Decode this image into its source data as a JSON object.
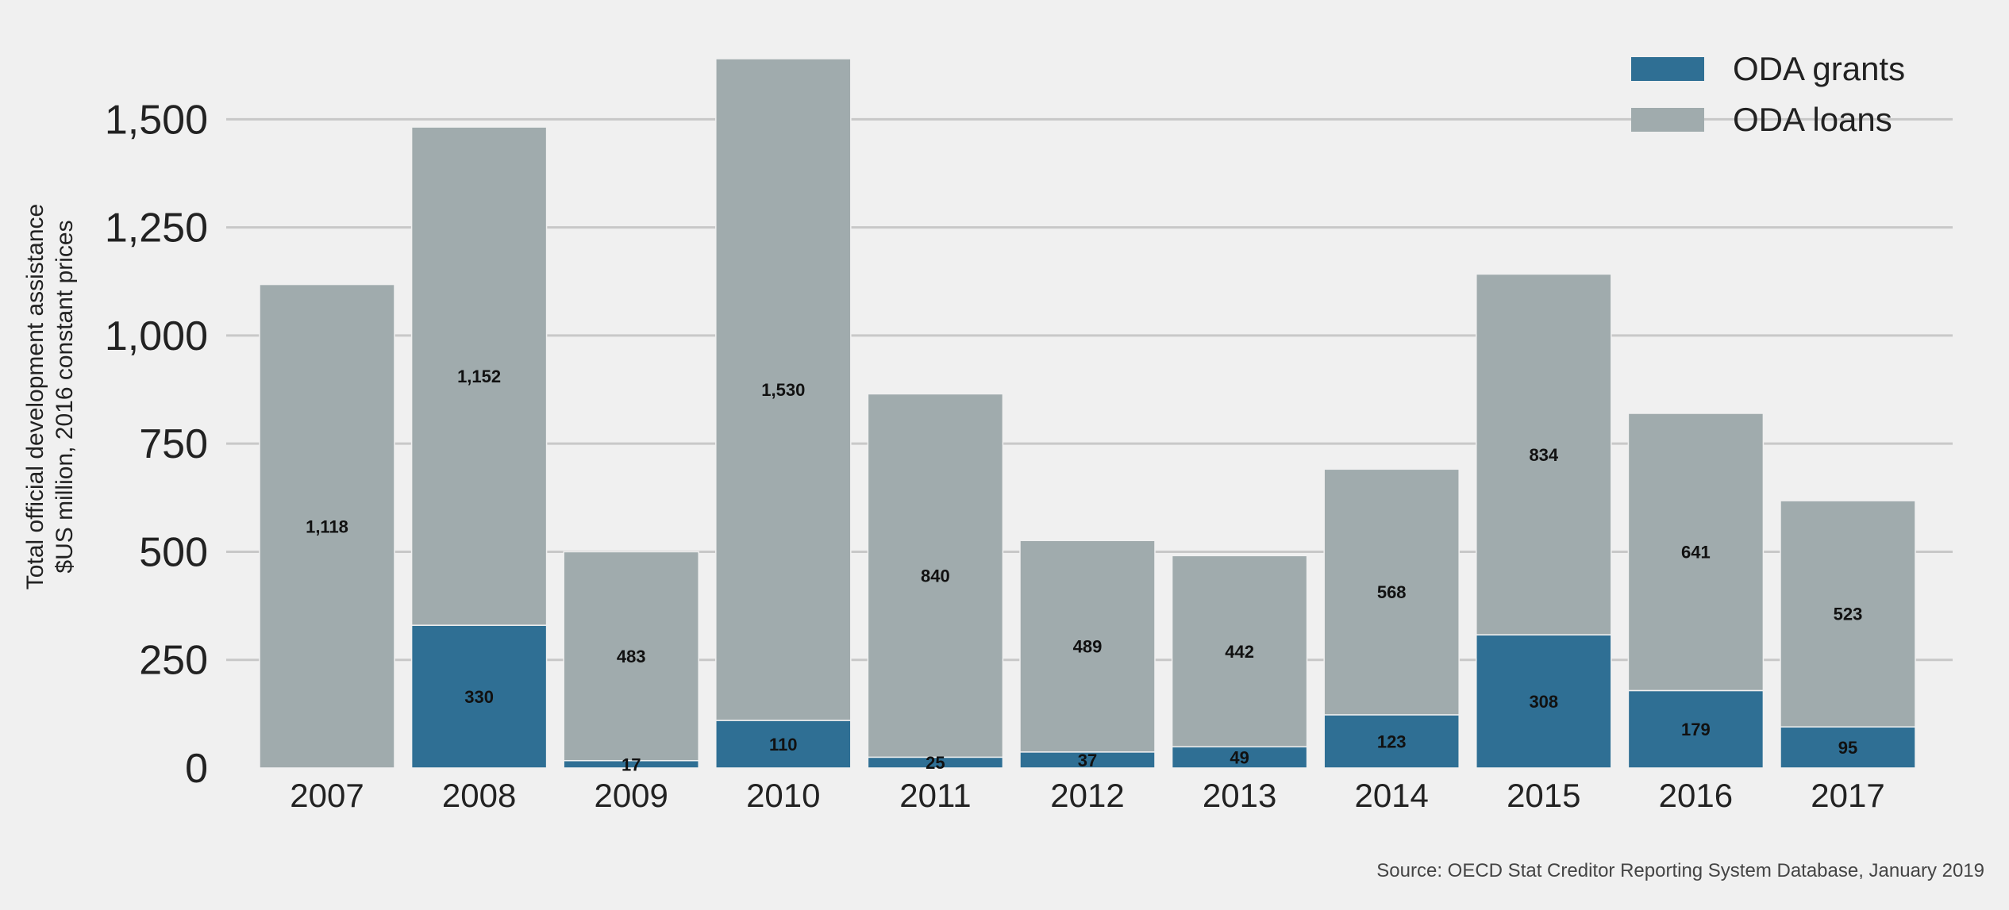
{
  "chart_data": {
    "type": "bar",
    "stacked": true,
    "categories": [
      "2007",
      "2008",
      "2009",
      "2010",
      "2011",
      "2012",
      "2013",
      "2014",
      "2015",
      "2016",
      "2017"
    ],
    "series": [
      {
        "name": "ODA grants",
        "color": "#2f6f94",
        "values": [
          0,
          330,
          17,
          110,
          25,
          37,
          49,
          123,
          308,
          179,
          95
        ],
        "labels": [
          "",
          "330",
          "17",
          "110",
          "25",
          "37",
          "49",
          "123",
          "308",
          "179",
          "95"
        ]
      },
      {
        "name": "ODA loans",
        "color": "#a0abad",
        "values": [
          1118,
          1152,
          483,
          1530,
          840,
          489,
          442,
          568,
          834,
          641,
          523
        ],
        "labels": [
          "1,118",
          "1,152",
          "483",
          "1,530",
          "840",
          "489",
          "442",
          "568",
          "834",
          "641",
          "523"
        ]
      }
    ],
    "ylabel_lines": [
      "Total official development assistance",
      "$US million, 2016 constant prices"
    ],
    "ylim": [
      0,
      1640
    ],
    "yticks": [
      0,
      250,
      500,
      750,
      1000,
      1250,
      1500
    ],
    "ytick_labels": [
      "0",
      "250",
      "500",
      "750",
      "1,000",
      "1,250",
      "1,500"
    ],
    "grid": true,
    "legend_position": "top-right",
    "source": "Source: OECD Stat Creditor Reporting System Database, January 2019"
  }
}
